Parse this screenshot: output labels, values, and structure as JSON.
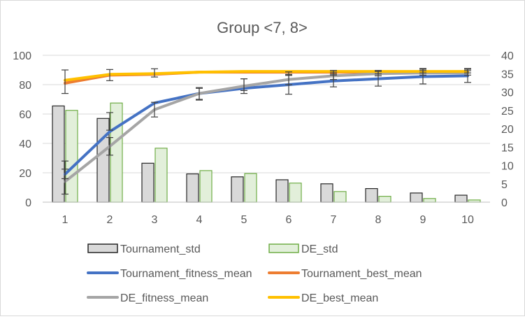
{
  "chart_data": {
    "type": "bar",
    "title": "Group <7, 8>",
    "categories": [
      "1",
      "2",
      "3",
      "4",
      "5",
      "6",
      "7",
      "8",
      "9",
      "10"
    ],
    "left_axis": {
      "min": 0,
      "max": 100,
      "ticks": [
        "0",
        "20",
        "40",
        "60",
        "80",
        "100"
      ]
    },
    "right_axis": {
      "min": 0,
      "max": 40,
      "ticks": [
        "0",
        "5",
        "10",
        "15",
        "20",
        "25",
        "30",
        "35",
        "40"
      ]
    },
    "grid": true,
    "legend_placement": "bottom",
    "bar_series": [
      {
        "name": "Tournament_std",
        "axis": "right",
        "color": "#d9d9d9",
        "stroke": "#262626",
        "values": [
          26.2,
          22.8,
          10.6,
          7.7,
          6.9,
          6.1,
          5.0,
          3.7,
          2.5,
          1.9
        ]
      },
      {
        "name": "DE_std",
        "axis": "right",
        "color": "#e2efda",
        "stroke": "#70ad47",
        "values": [
          25.0,
          27.0,
          14.7,
          8.6,
          7.8,
          5.2,
          2.9,
          1.6,
          1.0,
          0.6
        ]
      }
    ],
    "line_series": [
      {
        "name": "Tournament_fitness_mean",
        "axis": "left",
        "color": "#4472c4",
        "values": [
          19.0,
          48.0,
          67.5,
          74.0,
          77.5,
          80.0,
          82.5,
          84.0,
          85.5,
          86.0
        ],
        "error": [
          0,
          0,
          0,
          0,
          0,
          6.5,
          4.0,
          5.0,
          5.0,
          4.5
        ]
      },
      {
        "name": "Tournament_best_mean",
        "axis": "left",
        "color": "#ed7d31",
        "values": [
          81.0,
          86.5,
          87.0,
          88.5,
          88.5,
          88.5,
          88.5,
          88.5,
          88.5,
          88.5
        ],
        "error": [
          0,
          0,
          0,
          0,
          0,
          0,
          0,
          0,
          0,
          0
        ]
      },
      {
        "name": "DE_fitness_mean",
        "axis": "left",
        "color": "#a5a5a5",
        "values": [
          14.0,
          38.0,
          63.0,
          74.0,
          79.0,
          83.5,
          86.0,
          87.5,
          88.0,
          88.0
        ],
        "error": [
          8.5,
          6.0,
          5.0,
          4.0,
          5.0,
          3.5,
          2.5,
          1.5,
          1.5,
          1.5
        ]
      },
      {
        "name": "DE_best_mean",
        "axis": "left",
        "color": "#ffc000",
        "values": [
          83.0,
          87.0,
          87.5,
          88.5,
          89.0,
          89.0,
          89.0,
          89.0,
          89.0,
          89.0
        ],
        "error": [
          0,
          0,
          0,
          0,
          0,
          0,
          0,
          0,
          0,
          0
        ]
      }
    ],
    "extra_error_bars": [
      {
        "at": 0,
        "value": 82.0,
        "error": 8.0
      },
      {
        "at": 1,
        "value": 86.5,
        "error": 3.8
      },
      {
        "at": 2,
        "value": 88.0,
        "error": 2.8
      },
      {
        "at": 3,
        "value": 73.5,
        "error": 4.0
      },
      {
        "at": 4,
        "value": 80.0,
        "error": 4.0
      },
      {
        "at": 5,
        "value": 87.5,
        "error": 1.2
      },
      {
        "at": 6,
        "value": 88.5,
        "error": 1.2
      },
      {
        "at": 7,
        "value": 88.5,
        "error": 1.2
      },
      {
        "at": 8,
        "value": 89.5,
        "error": 1.5
      },
      {
        "at": 9,
        "value": 89.5,
        "error": 1.5
      },
      {
        "at": 0,
        "value": 22.0,
        "error": 6.0
      },
      {
        "at": 1,
        "value": 55.0,
        "error": 6.0
      }
    ]
  }
}
